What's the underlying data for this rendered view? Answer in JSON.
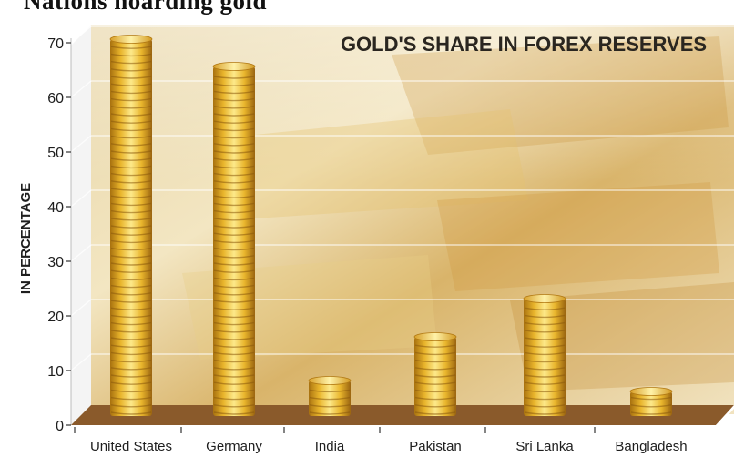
{
  "caption_partial": "Nations hoarding gold",
  "chart_data": {
    "type": "bar",
    "title": "GOLD'S SHARE IN FOREX RESERVES",
    "ylabel": "IN PERCENTAGE",
    "xlabel": "",
    "categories": [
      "United States",
      "Germany",
      "India",
      "Pakistan",
      "Sri Lanka",
      "Bangladesh"
    ],
    "values": [
      69,
      64,
      6.5,
      14.5,
      21.5,
      4.5
    ],
    "ylim": [
      0,
      70
    ],
    "yticks": [
      "0",
      "10",
      "20",
      "30",
      "40",
      "50",
      "60",
      "70"
    ],
    "grid": true,
    "legend": "none"
  },
  "colors": {
    "bar_light": "#f8e27a",
    "bar_mid": "#e9b52c",
    "bar_dark": "#a8710f",
    "floor": "#8a5a2b",
    "floor_top": "#a57343",
    "title": "#2a2620",
    "axis_text": "#1e1e1e"
  }
}
